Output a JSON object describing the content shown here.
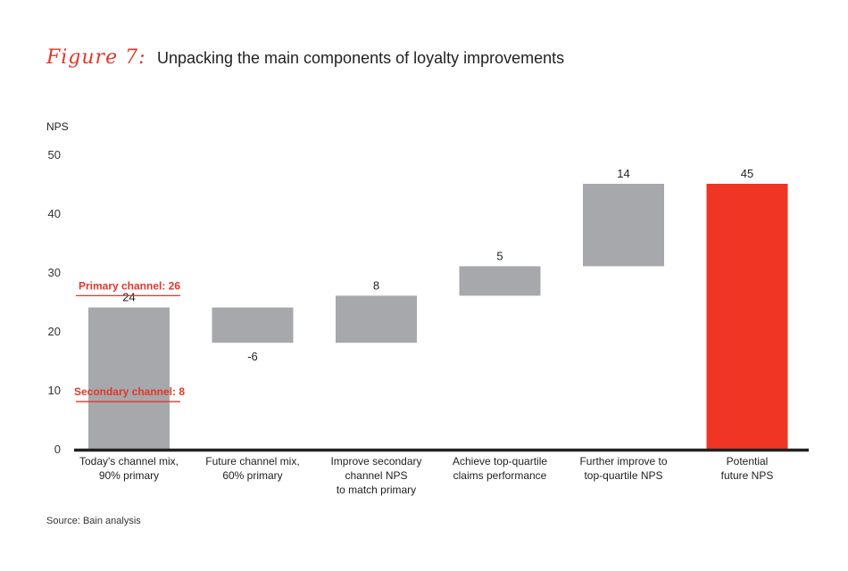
{
  "figure": {
    "label": "Figure 7:",
    "title": "Unpacking the main components of loyalty improvements",
    "source": "Source: Bain analysis"
  },
  "chart_data": {
    "type": "bar",
    "subtype": "waterfall",
    "ylabel": "NPS",
    "ylim": [
      0,
      50
    ],
    "yticks": [
      0,
      10,
      20,
      30,
      40,
      50
    ],
    "grid": false,
    "categories": [
      "Today's channel mix,\n90% primary",
      "Future channel mix,\n60% primary",
      "Improve secondary\nchannel NPS\nto match primary",
      "Achieve top-quartile\nclaims performance",
      "Further improve to\ntop-quartile NPS",
      "Potential\nfuture NPS"
    ],
    "bars": [
      {
        "start": 0,
        "end": 24,
        "label": "24",
        "kind": "total"
      },
      {
        "start": 24,
        "end": 18,
        "label": "-6",
        "kind": "delta"
      },
      {
        "start": 18,
        "end": 26,
        "label": "8",
        "kind": "delta"
      },
      {
        "start": 26,
        "end": 31,
        "label": "5",
        "kind": "delta"
      },
      {
        "start": 31,
        "end": 45,
        "label": "14",
        "kind": "delta"
      },
      {
        "start": 0,
        "end": 45,
        "label": "45",
        "kind": "highlight"
      }
    ],
    "reference_lines": [
      {
        "label": "Primary channel: 26",
        "value": 26
      },
      {
        "label": "Secondary channel: 8",
        "value": 8
      }
    ],
    "colors": {
      "bar": "#a7a8ab",
      "highlight": "#ef3524",
      "reference": "#e2372b",
      "axis": "#222222"
    }
  }
}
